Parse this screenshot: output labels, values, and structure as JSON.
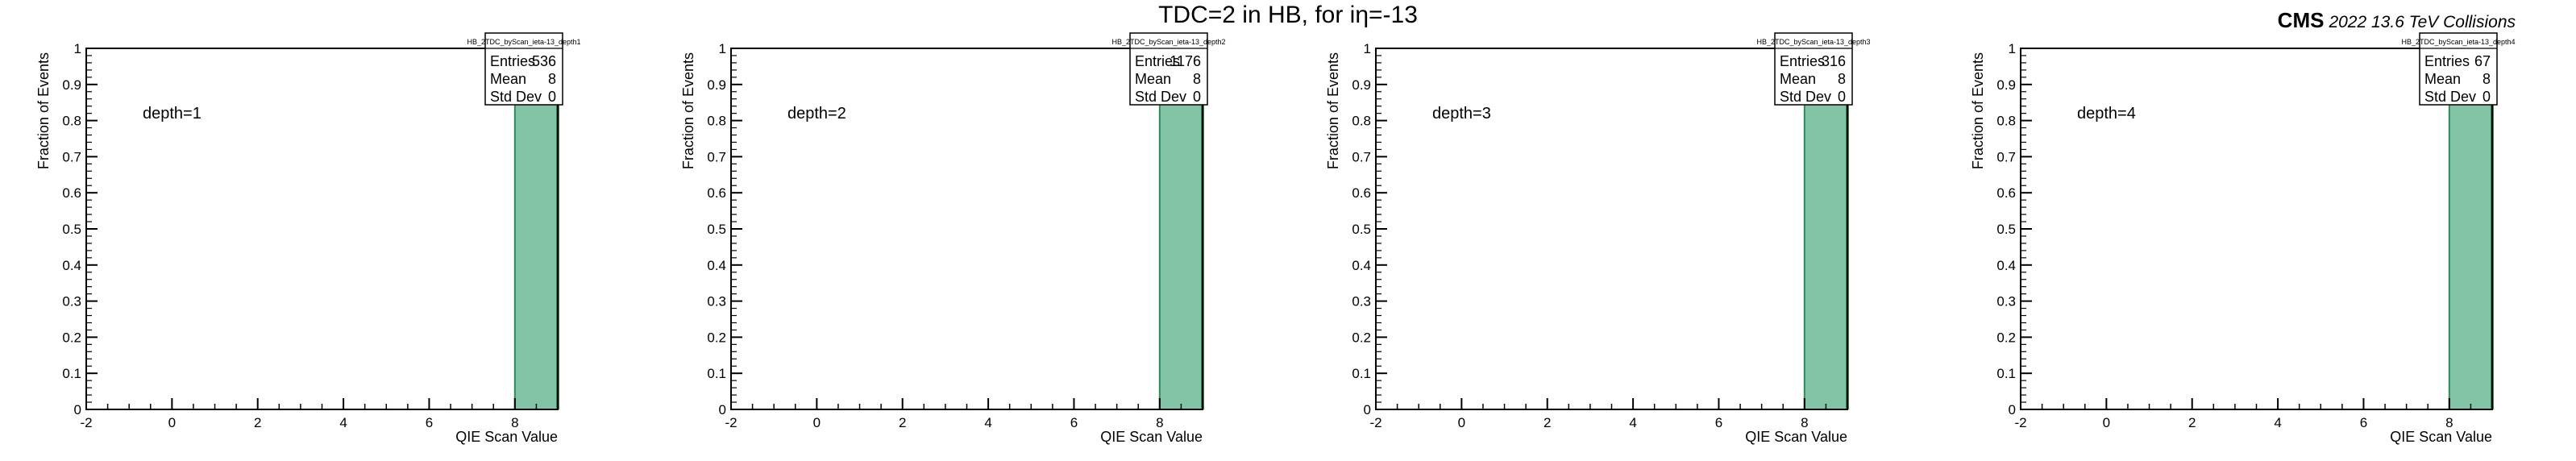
{
  "header": {
    "title": "TDC=2 in HB, for iη=-13",
    "experiment": "CMS",
    "run_info": "2022 13.6 TeV Collisions"
  },
  "style": {
    "bar_fill": "#84c4a6",
    "bar_edge": "#2e8b57",
    "axis_color": "#000000"
  },
  "chart_data": [
    {
      "type": "bar",
      "stats_name": "HB_2TDC_byScan_ieta-13_depth1",
      "annotation": "depth=1",
      "stats": {
        "Entries": "536",
        "Mean": "8",
        "Std Dev": "0"
      },
      "xlabel": "QIE Scan Value",
      "ylabel": "Fraction of Events",
      "xlim": [
        -2,
        9
      ],
      "ylim": [
        0,
        1
      ],
      "xticks": [
        -2,
        0,
        2,
        4,
        6,
        8
      ],
      "yticks": [
        0,
        0.1,
        0.2,
        0.3,
        0.4,
        0.5,
        0.6,
        0.7,
        0.8,
        0.9,
        1
      ],
      "bins": [
        {
          "x0": 8,
          "x1": 9,
          "value": 1.0
        }
      ]
    },
    {
      "type": "bar",
      "stats_name": "HB_2TDC_byScan_ieta-13_depth2",
      "annotation": "depth=2",
      "stats": {
        "Entries": "1176",
        "Mean": "8",
        "Std Dev": "0"
      },
      "xlabel": "QIE Scan Value",
      "ylabel": "Fraction of Events",
      "xlim": [
        -2,
        9
      ],
      "ylim": [
        0,
        1
      ],
      "xticks": [
        -2,
        0,
        2,
        4,
        6,
        8
      ],
      "yticks": [
        0,
        0.1,
        0.2,
        0.3,
        0.4,
        0.5,
        0.6,
        0.7,
        0.8,
        0.9,
        1
      ],
      "bins": [
        {
          "x0": 8,
          "x1": 9,
          "value": 1.0
        }
      ]
    },
    {
      "type": "bar",
      "stats_name": "HB_2TDC_byScan_ieta-13_depth3",
      "annotation": "depth=3",
      "stats": {
        "Entries": "316",
        "Mean": "8",
        "Std Dev": "0"
      },
      "xlabel": "QIE Scan Value",
      "ylabel": "Fraction of Events",
      "xlim": [
        -2,
        9
      ],
      "ylim": [
        0,
        1
      ],
      "xticks": [
        -2,
        0,
        2,
        4,
        6,
        8
      ],
      "yticks": [
        0,
        0.1,
        0.2,
        0.3,
        0.4,
        0.5,
        0.6,
        0.7,
        0.8,
        0.9,
        1
      ],
      "bins": [
        {
          "x0": 8,
          "x1": 9,
          "value": 1.0
        }
      ]
    },
    {
      "type": "bar",
      "stats_name": "HB_2TDC_byScan_ieta-13_depth4",
      "annotation": "depth=4",
      "stats": {
        "Entries": "67",
        "Mean": "8",
        "Std Dev": "0"
      },
      "xlabel": "QIE Scan Value",
      "ylabel": "Fraction of Events",
      "xlim": [
        -2,
        9
      ],
      "ylim": [
        0,
        1
      ],
      "xticks": [
        -2,
        0,
        2,
        4,
        6,
        8
      ],
      "yticks": [
        0,
        0.1,
        0.2,
        0.3,
        0.4,
        0.5,
        0.6,
        0.7,
        0.8,
        0.9,
        1
      ],
      "bins": [
        {
          "x0": 8,
          "x1": 9,
          "value": 1.0
        }
      ]
    }
  ]
}
